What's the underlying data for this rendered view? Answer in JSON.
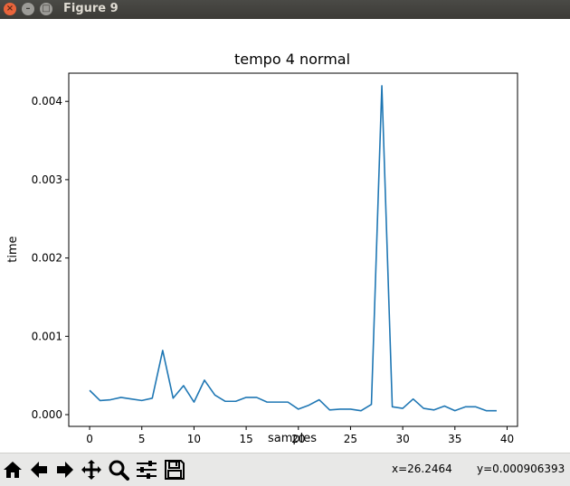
{
  "window": {
    "title": "Figure 9"
  },
  "toolbar": {
    "buttons": [
      {
        "name": "home-icon"
      },
      {
        "name": "back-arrow-icon"
      },
      {
        "name": "forward-arrow-icon"
      },
      {
        "name": "pan-icon"
      },
      {
        "name": "zoom-icon"
      },
      {
        "name": "configure-subplots-icon"
      },
      {
        "name": "save-icon"
      }
    ],
    "x_readout": "x=26.2464",
    "y_readout": "y=0.000906393"
  },
  "chart_data": {
    "type": "line",
    "title": "tempo 4 normal",
    "xlabel": "samples",
    "ylabel": "time",
    "xlim": [
      -2,
      41
    ],
    "ylim": [
      -0.00015,
      0.00436
    ],
    "xticks": [
      0,
      5,
      10,
      15,
      20,
      25,
      30,
      35,
      40
    ],
    "yticks": [
      0.0,
      0.001,
      0.002,
      0.003,
      0.004
    ],
    "ytick_labels": [
      "0.000",
      "0.001",
      "0.002",
      "0.003",
      "0.004"
    ],
    "color": "#1f77b4",
    "grid": false,
    "series": [
      {
        "x": [
          0,
          1,
          2,
          3,
          4,
          5,
          6,
          7,
          8,
          9,
          10,
          11,
          12,
          13,
          14,
          15,
          16,
          17,
          18,
          19,
          20,
          21,
          22,
          23,
          24,
          25,
          26,
          27,
          28,
          29,
          30,
          31,
          32,
          33,
          34,
          35,
          36,
          37,
          38,
          39
        ],
        "values": [
          0.00031,
          0.00018,
          0.00019,
          0.00022,
          0.0002,
          0.00018,
          0.00021,
          0.00082,
          0.00021,
          0.00037,
          0.00016,
          0.00044,
          0.00025,
          0.00017,
          0.00017,
          0.00022,
          0.00022,
          0.00016,
          0.00016,
          0.00016,
          7e-05,
          0.00012,
          0.00019,
          6e-05,
          7e-05,
          7e-05,
          5e-05,
          0.00013,
          0.0042,
          0.0001,
          8e-05,
          0.0002,
          8e-05,
          6e-05,
          0.00011,
          5e-05,
          0.0001,
          0.0001,
          5e-05,
          5e-05
        ]
      }
    ]
  }
}
